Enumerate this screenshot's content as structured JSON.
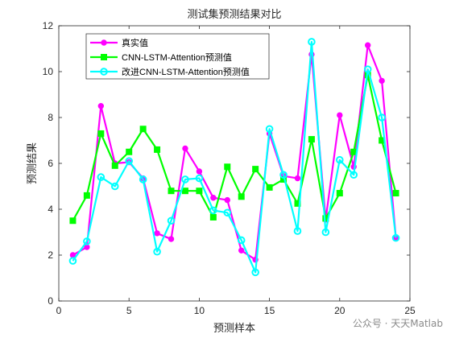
{
  "chart_data": {
    "type": "line",
    "title": "测试集预测结果对比",
    "xlabel": "预测样本",
    "ylabel": "预测结果",
    "xlim": [
      0,
      25
    ],
    "ylim": [
      0,
      12
    ],
    "xticks": [
      0,
      5,
      10,
      15,
      20,
      25
    ],
    "yticks": [
      0,
      2,
      4,
      6,
      8,
      10,
      12
    ],
    "legend_position": "top-left",
    "x": [
      1,
      2,
      3,
      4,
      5,
      6,
      7,
      8,
      9,
      10,
      11,
      12,
      13,
      14,
      15,
      16,
      17,
      18,
      19,
      20,
      21,
      22,
      23,
      24
    ],
    "series": [
      {
        "name": "真实值",
        "color": "#ff00ff",
        "marker": "circle-filled",
        "values": [
          2.0,
          2.35,
          8.5,
          6.0,
          6.05,
          5.35,
          2.95,
          2.7,
          6.65,
          5.65,
          4.5,
          4.4,
          2.2,
          1.8,
          7.3,
          5.45,
          5.35,
          10.75,
          3.55,
          8.1,
          5.85,
          11.15,
          9.6,
          2.75
        ]
      },
      {
        "name": "CNN-LSTM-Attention预测值",
        "color": "#00ff00",
        "marker": "square-filled",
        "values": [
          3.5,
          4.6,
          7.3,
          5.9,
          6.5,
          7.5,
          6.6,
          4.8,
          4.8,
          4.8,
          3.65,
          5.85,
          4.55,
          5.75,
          4.95,
          5.3,
          4.25,
          7.05,
          3.6,
          4.7,
          6.5,
          9.85,
          7.0,
          4.7
        ]
      },
      {
        "name": "改进CNN-LSTM-Attention预测值",
        "color": "#00ffff",
        "marker": "circle-open",
        "values": [
          1.75,
          2.6,
          5.4,
          5.0,
          6.1,
          5.3,
          2.15,
          3.5,
          5.3,
          5.35,
          3.95,
          3.85,
          2.65,
          1.25,
          7.5,
          5.5,
          3.05,
          11.3,
          3.0,
          6.15,
          5.5,
          10.1,
          8.0,
          2.75
        ]
      }
    ]
  },
  "watermark": "公众号 · 天天Matlab"
}
